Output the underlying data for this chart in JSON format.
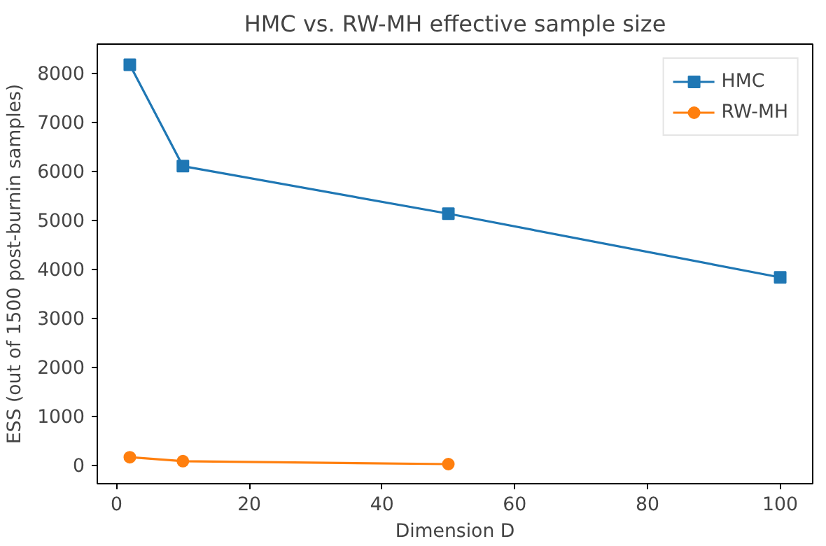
{
  "chart_data": {
    "type": "line",
    "title": "HMC vs. RW-MH effective sample size",
    "xlabel": "Dimension D",
    "ylabel": "ESS (out of 1500 post-burnin samples)",
    "xlim": [
      -2.9,
      104.9
    ],
    "ylim": [
      -380,
      8590
    ],
    "xticks": [
      0,
      20,
      40,
      60,
      80,
      100
    ],
    "yticks": [
      0,
      1000,
      2000,
      3000,
      4000,
      5000,
      6000,
      7000,
      8000
    ],
    "grid": false,
    "legend": "top right",
    "line_style": "solid",
    "series": [
      {
        "name": "HMC",
        "color": "#1f77b4",
        "marker": "square",
        "x": [
          2,
          10,
          50,
          100
        ],
        "values": [
          8170,
          6100,
          5130,
          3830
        ]
      },
      {
        "name": "RW-MH",
        "color": "#ff7f0e",
        "marker": "circle",
        "x": [
          2,
          10,
          50
        ],
        "values": [
          160,
          80,
          20
        ]
      }
    ]
  }
}
